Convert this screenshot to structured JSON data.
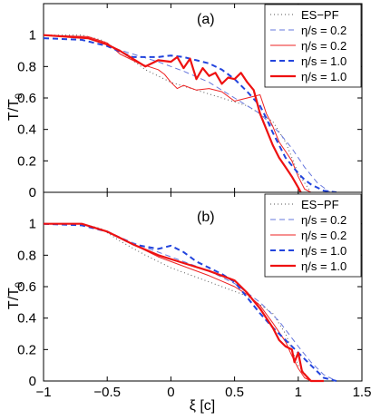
{
  "chart_data": [
    {
      "type": "line",
      "panel_label": "(a)",
      "ylabel": "T/T",
      "ylabel_sub": "0",
      "xlabel": "",
      "xlim": [
        -1,
        1.5
      ],
      "ylim": [
        0,
        1.2
      ],
      "xticks": [
        "-1",
        "-0.5",
        "0",
        "0.5",
        "1",
        "1.5"
      ],
      "yticks": [
        "0",
        "0.2",
        "0.4",
        "0.6",
        "0.8",
        "1"
      ],
      "legend_position": "top-right",
      "series": [
        {
          "name": "ES−PF",
          "color": "#555555",
          "style": "dotted",
          "width": 1,
          "x": [
            -1.0,
            -0.7,
            -0.55,
            -0.4,
            -0.2,
            0.0,
            0.2,
            0.4,
            0.6,
            0.8,
            0.9,
            1.0,
            1.1
          ],
          "y": [
            1.0,
            1.0,
            0.97,
            0.9,
            0.78,
            0.7,
            0.65,
            0.6,
            0.55,
            0.45,
            0.32,
            0.12,
            0.0
          ]
        },
        {
          "name": "η/s = 0.2",
          "color": "#6677dd",
          "style": "dashed",
          "width": 1,
          "x": [
            -1.0,
            -0.7,
            -0.5,
            -0.3,
            -0.1,
            0.1,
            0.3,
            0.5,
            0.7,
            0.85,
            0.95,
            1.05,
            1.15,
            1.25
          ],
          "y": [
            0.98,
            0.97,
            0.93,
            0.88,
            0.83,
            0.77,
            0.7,
            0.6,
            0.5,
            0.38,
            0.28,
            0.16,
            0.06,
            0.0
          ]
        },
        {
          "name": "η/s = 0.2",
          "color": "#ee2222",
          "style": "solid",
          "width": 1,
          "x": [
            -1.0,
            -0.65,
            -0.5,
            -0.4,
            -0.25,
            -0.1,
            -0.05,
            0.0,
            0.05,
            0.1,
            0.2,
            0.3,
            0.4,
            0.5,
            0.6,
            0.7,
            0.75,
            0.8,
            0.85,
            0.9,
            0.95,
            1.0,
            1.05,
            1.1
          ],
          "y": [
            1.0,
            0.99,
            0.95,
            0.88,
            0.82,
            0.78,
            0.75,
            0.7,
            0.66,
            0.68,
            0.65,
            0.66,
            0.64,
            0.58,
            0.6,
            0.62,
            0.5,
            0.42,
            0.32,
            0.26,
            0.2,
            0.1,
            0.02,
            0.0
          ]
        },
        {
          "name": "η/s = 1.0",
          "color": "#2244dd",
          "style": "dashed",
          "width": 2,
          "x": [
            -1.0,
            -0.7,
            -0.5,
            -0.3,
            -0.1,
            0.0,
            0.1,
            0.2,
            0.3,
            0.4,
            0.5,
            0.6,
            0.7,
            0.75,
            0.8,
            0.85,
            0.9,
            0.95,
            1.0,
            1.05,
            1.1,
            1.2,
            1.3
          ],
          "y": [
            0.98,
            0.97,
            0.93,
            0.86,
            0.86,
            0.87,
            0.86,
            0.84,
            0.82,
            0.78,
            0.72,
            0.64,
            0.55,
            0.47,
            0.38,
            0.3,
            0.22,
            0.17,
            0.12,
            0.08,
            0.05,
            0.01,
            0.0
          ]
        },
        {
          "name": "η/s = 1.0",
          "color": "#ee1111",
          "style": "solid",
          "width": 2.2,
          "x": [
            -1.0,
            -0.65,
            -0.5,
            -0.4,
            -0.3,
            -0.2,
            -0.1,
            0.0,
            0.05,
            0.1,
            0.15,
            0.2,
            0.25,
            0.3,
            0.35,
            0.4,
            0.45,
            0.5,
            0.55,
            0.6,
            0.65,
            0.7,
            0.75,
            0.8,
            0.85,
            0.9,
            0.95,
            1.0,
            1.02
          ],
          "y": [
            1.0,
            0.98,
            0.94,
            0.9,
            0.85,
            0.8,
            0.84,
            0.83,
            0.86,
            0.79,
            0.85,
            0.72,
            0.79,
            0.74,
            0.76,
            0.69,
            0.73,
            0.72,
            0.76,
            0.7,
            0.65,
            0.5,
            0.4,
            0.3,
            0.22,
            0.16,
            0.1,
            0.03,
            0.0
          ]
        }
      ]
    },
    {
      "type": "line",
      "panel_label": "(b)",
      "ylabel": "T/T",
      "ylabel_sub": "0",
      "xlabel": "ξ [c]",
      "xlim": [
        -1,
        1.5
      ],
      "ylim": [
        0,
        1.2
      ],
      "xticks": [
        "-1",
        "-0.5",
        "0",
        "0.5",
        "1",
        "1.5"
      ],
      "yticks": [
        "0",
        "0.2",
        "0.4",
        "0.6",
        "0.8",
        "1"
      ],
      "legend_position": "top-right",
      "series": [
        {
          "name": "ES−PF",
          "color": "#555555",
          "style": "dotted",
          "width": 1,
          "x": [
            -1.0,
            -0.7,
            -0.55,
            -0.4,
            -0.2,
            0.0,
            0.2,
            0.4,
            0.6,
            0.8,
            0.9,
            1.0,
            1.1
          ],
          "y": [
            1.0,
            1.0,
            0.97,
            0.89,
            0.8,
            0.72,
            0.66,
            0.6,
            0.54,
            0.43,
            0.3,
            0.1,
            0.0
          ]
        },
        {
          "name": "η/s = 0.2",
          "color": "#6677dd",
          "style": "dashed",
          "width": 1,
          "x": [
            -1.0,
            -0.7,
            -0.5,
            -0.3,
            -0.1,
            0.1,
            0.3,
            0.5,
            0.7,
            0.85,
            1.0,
            1.1,
            1.2,
            1.3
          ],
          "y": [
            1.0,
            0.99,
            0.95,
            0.88,
            0.82,
            0.76,
            0.7,
            0.62,
            0.5,
            0.38,
            0.22,
            0.12,
            0.04,
            0.0
          ]
        },
        {
          "name": "η/s = 0.2",
          "color": "#ee2222",
          "style": "solid",
          "width": 1,
          "x": [
            -1.0,
            -0.7,
            -0.5,
            -0.3,
            -0.1,
            0.1,
            0.3,
            0.5,
            0.6,
            0.7,
            0.8,
            0.9,
            0.95,
            1.0,
            1.05,
            1.1,
            1.2
          ],
          "y": [
            1.0,
            1.0,
            0.95,
            0.87,
            0.79,
            0.73,
            0.67,
            0.6,
            0.55,
            0.48,
            0.37,
            0.25,
            0.16,
            0.08,
            0.02,
            0.0,
            0.0
          ]
        },
        {
          "name": "η/s = 1.0",
          "color": "#2244dd",
          "style": "dashed",
          "width": 2,
          "x": [
            -1.0,
            -0.7,
            -0.5,
            -0.3,
            -0.1,
            0.0,
            0.1,
            0.2,
            0.3,
            0.4,
            0.5,
            0.6,
            0.7,
            0.8,
            0.9,
            1.0,
            1.1,
            1.2,
            1.3
          ],
          "y": [
            1.0,
            0.99,
            0.95,
            0.87,
            0.84,
            0.86,
            0.82,
            0.76,
            0.72,
            0.68,
            0.63,
            0.53,
            0.43,
            0.34,
            0.26,
            0.18,
            0.1,
            0.02,
            0.0
          ]
        },
        {
          "name": "η/s = 1.0",
          "color": "#ee1111",
          "style": "solid",
          "width": 2.2,
          "x": [
            -1.0,
            -0.7,
            -0.5,
            -0.3,
            -0.1,
            0.1,
            0.3,
            0.5,
            0.6,
            0.7,
            0.75,
            0.8,
            0.85,
            0.9,
            0.95,
            0.97,
            1.0,
            1.03,
            1.1,
            1.2
          ],
          "y": [
            1.0,
            1.0,
            0.95,
            0.87,
            0.8,
            0.75,
            0.7,
            0.64,
            0.56,
            0.46,
            0.4,
            0.34,
            0.26,
            0.22,
            0.2,
            0.12,
            0.18,
            0.06,
            0.0,
            0.0
          ]
        }
      ]
    }
  ]
}
